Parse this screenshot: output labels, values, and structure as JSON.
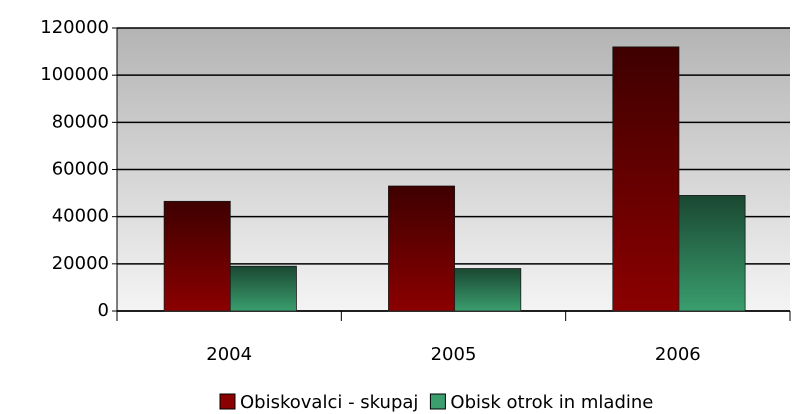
{
  "chart_data": {
    "type": "bar",
    "categories": [
      "2004",
      "2005",
      "2006"
    ],
    "series": [
      {
        "name": "Obiskovalci - skupaj",
        "color": "#8b0000",
        "values": [
          46500,
          53000,
          112000
        ]
      },
      {
        "name": "Obisk otrok in mladine",
        "color": "#3a9e6e",
        "values": [
          19000,
          18000,
          49000
        ]
      }
    ],
    "ylim": [
      0,
      120000
    ],
    "yticks": [
      0,
      20000,
      40000,
      60000,
      80000,
      100000,
      120000
    ],
    "grid": true
  }
}
